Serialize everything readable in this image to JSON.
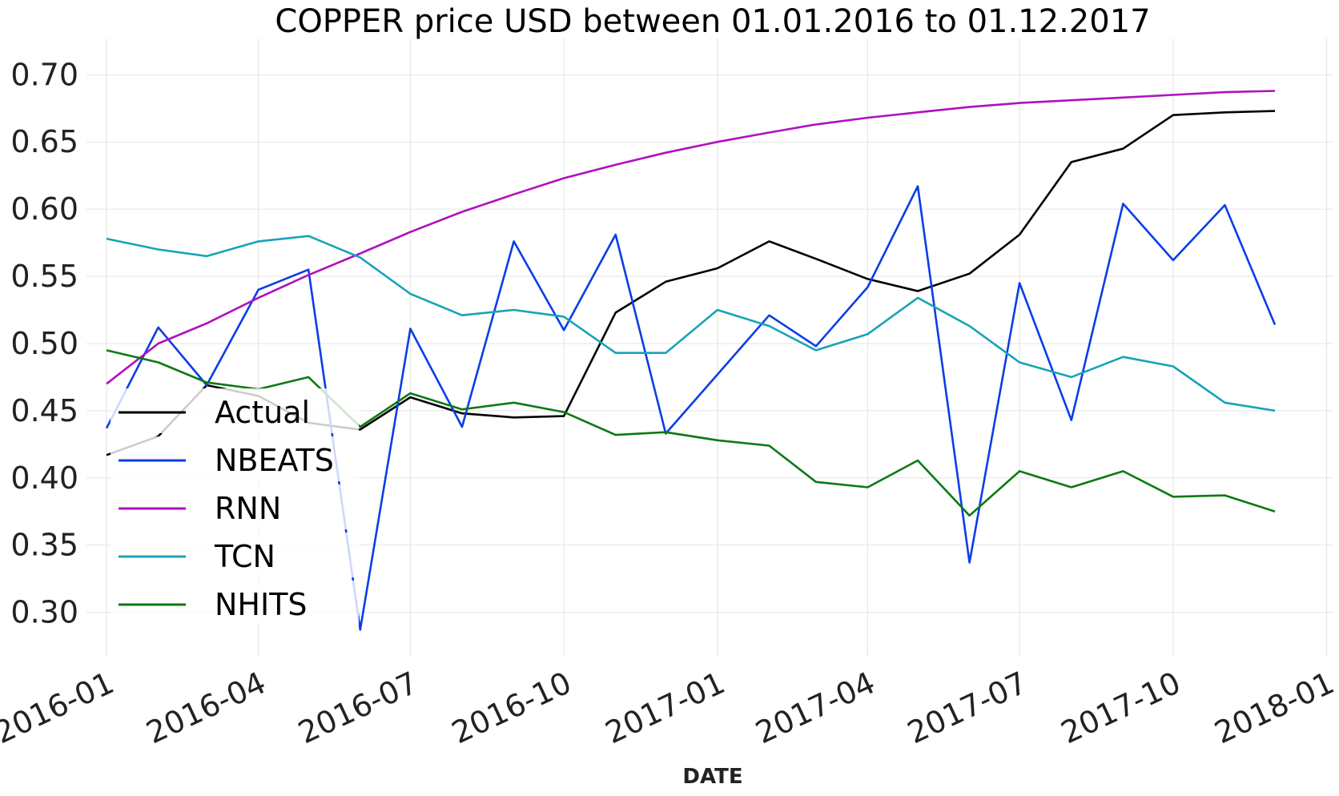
{
  "chart_data": {
    "type": "line",
    "title": "COPPER price USD between 01.01.2016 to 01.12.2017",
    "xlabel": "DATE",
    "ylabel": "",
    "x": [
      "2016-01",
      "2016-02",
      "2016-03",
      "2016-04",
      "2016-05",
      "2016-06",
      "2016-07",
      "2016-08",
      "2016-09",
      "2016-10",
      "2016-11",
      "2016-12",
      "2017-01",
      "2017-02",
      "2017-03",
      "2017-04",
      "2017-05",
      "2017-06",
      "2017-07",
      "2017-08",
      "2017-09",
      "2017-10",
      "2017-11",
      "2017-12"
    ],
    "xlim": [
      "2015-12-20",
      "2018-01-05"
    ],
    "x_ticks": [
      "2016-01",
      "2016-04",
      "2016-07",
      "2016-10",
      "2017-01",
      "2017-04",
      "2017-07",
      "2017-10",
      "2018-01"
    ],
    "ylim": [
      0.267,
      0.727
    ],
    "y_ticks": [
      "0.30",
      "0.35",
      "0.40",
      "0.45",
      "0.50",
      "0.55",
      "0.60",
      "0.65",
      "0.70"
    ],
    "grid": true,
    "legend_position": "lower-left",
    "series": [
      {
        "name": "Actual",
        "color": "#000000",
        "values": [
          0.417,
          0.431,
          0.469,
          0.461,
          0.441,
          0.436,
          0.46,
          0.448,
          0.445,
          0.446,
          0.523,
          0.546,
          0.556,
          0.576,
          0.563,
          0.548,
          0.539,
          0.552,
          0.581,
          0.635,
          0.645,
          0.67,
          0.672,
          0.673
        ]
      },
      {
        "name": "NBEATS",
        "color": "#0a3de8",
        "values": [
          0.437,
          0.512,
          0.469,
          0.54,
          0.555,
          0.287,
          0.511,
          0.438,
          0.576,
          0.51,
          0.581,
          0.433,
          0.477,
          0.521,
          0.498,
          0.542,
          0.617,
          0.337,
          0.545,
          0.443,
          0.604,
          0.562,
          0.603,
          0.514
        ]
      },
      {
        "name": "RNN",
        "color": "#b010c0",
        "values": [
          0.47,
          0.5,
          0.515,
          0.534,
          0.551,
          0.567,
          0.583,
          0.598,
          0.611,
          0.623,
          0.633,
          0.642,
          0.65,
          0.657,
          0.663,
          0.668,
          0.672,
          0.676,
          0.679,
          0.681,
          0.683,
          0.685,
          0.687,
          0.688
        ]
      },
      {
        "name": "TCN",
        "color": "#17a3b8",
        "values": [
          0.578,
          0.57,
          0.565,
          0.576,
          0.58,
          0.564,
          0.537,
          0.521,
          0.525,
          0.52,
          0.493,
          0.493,
          0.525,
          0.513,
          0.495,
          0.507,
          0.534,
          0.513,
          0.486,
          0.475,
          0.49,
          0.483,
          0.456,
          0.45
        ]
      },
      {
        "name": "NHITS",
        "color": "#0b7a12",
        "values": [
          0.495,
          0.486,
          0.471,
          0.466,
          0.475,
          0.438,
          0.463,
          0.451,
          0.456,
          0.449,
          0.432,
          0.434,
          0.428,
          0.424,
          0.397,
          0.393,
          0.413,
          0.372,
          0.405,
          0.393,
          0.405,
          0.386,
          0.387,
          0.375
        ]
      }
    ]
  }
}
